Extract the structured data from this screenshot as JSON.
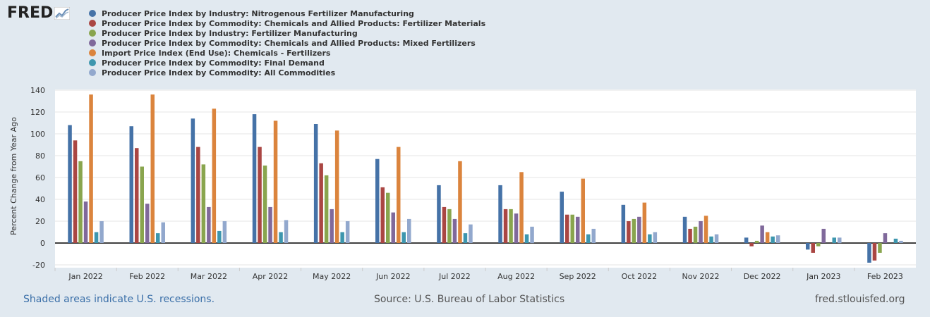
{
  "logo": {
    "text": "FRED",
    "icon": "chart-line-icon"
  },
  "legend": [
    {
      "label": "Producer Price Index by Industry: Nitrogenous Fertilizer Manufacturing",
      "color": "#4572a7"
    },
    {
      "label": "Producer Price Index by Commodity: Chemicals and Allied Products: Fertilizer Materials",
      "color": "#aa4643"
    },
    {
      "label": "Producer Price Index by Industry: Fertilizer Manufacturing",
      "color": "#89a54e"
    },
    {
      "label": "Producer Price Index by Commodity: Chemicals and Allied Products: Mixed Fertilizers",
      "color": "#80699b"
    },
    {
      "label": "Import Price Index (End Use): Chemicals - Fertilizers",
      "color": "#db843d"
    },
    {
      "label": "Producer Price Index by Commodity: Final Demand",
      "color": "#3d96ae"
    },
    {
      "label": "Producer Price Index by Commodity: All Commodities",
      "color": "#92a8cd"
    }
  ],
  "chart_data": {
    "type": "bar",
    "ylabel": "Percent Change from Year Ago",
    "ylim": [
      -20,
      140
    ],
    "yticks": [
      -20,
      0,
      20,
      40,
      60,
      80,
      100,
      120,
      140
    ],
    "grid": true,
    "categories": [
      "Jan 2022",
      "Feb 2022",
      "Mar 2022",
      "Apr 2022",
      "May 2022",
      "Jun 2022",
      "Jul 2022",
      "Aug 2022",
      "Sep 2022",
      "Oct 2022",
      "Nov 2022",
      "Dec 2022",
      "Jan 2023",
      "Feb 2023"
    ],
    "series": [
      {
        "name": "Producer Price Index by Industry: Nitrogenous Fertilizer Manufacturing",
        "color": "#4572a7",
        "values": [
          108,
          107,
          114,
          118,
          109,
          77,
          53,
          53,
          47,
          35,
          24,
          5,
          -6,
          -18
        ]
      },
      {
        "name": "Producer Price Index by Commodity: Chemicals and Allied Products: Fertilizer Materials",
        "color": "#aa4643",
        "values": [
          94,
          87,
          88,
          88,
          73,
          51,
          33,
          31,
          26,
          20,
          13,
          -3,
          -9,
          -16
        ]
      },
      {
        "name": "Producer Price Index by Industry: Fertilizer Manufacturing",
        "color": "#89a54e",
        "values": [
          75,
          70,
          72,
          71,
          62,
          46,
          31,
          31,
          26,
          22,
          15,
          2,
          -3,
          -9
        ]
      },
      {
        "name": "Producer Price Index by Commodity: Chemicals and Allied Products: Mixed Fertilizers",
        "color": "#80699b",
        "values": [
          38,
          36,
          33,
          33,
          31,
          28,
          22,
          27,
          24,
          24,
          20,
          16,
          13,
          9
        ]
      },
      {
        "name": "Import Price Index (End Use): Chemicals - Fertilizers",
        "color": "#db843d",
        "values": [
          136,
          136,
          123,
          112,
          103,
          88,
          75,
          65,
          59,
          37,
          25,
          10,
          null,
          null
        ]
      },
      {
        "name": "Producer Price Index by Commodity: Final Demand",
        "color": "#3d96ae",
        "values": [
          10,
          9,
          11,
          10,
          10,
          10,
          9,
          8,
          8,
          8,
          6,
          6,
          5,
          4
        ]
      },
      {
        "name": "Producer Price Index by Commodity: All Commodities",
        "color": "#92a8cd",
        "values": [
          20,
          19,
          20,
          21,
          20,
          22,
          17,
          15,
          13,
          10,
          8,
          7,
          5,
          2
        ]
      }
    ]
  },
  "footer": {
    "recessions": "Shaded areas indicate U.S. recessions.",
    "source": "Source: U.S. Bureau of Labor Statistics",
    "site": "fred.stlouisfed.org"
  }
}
